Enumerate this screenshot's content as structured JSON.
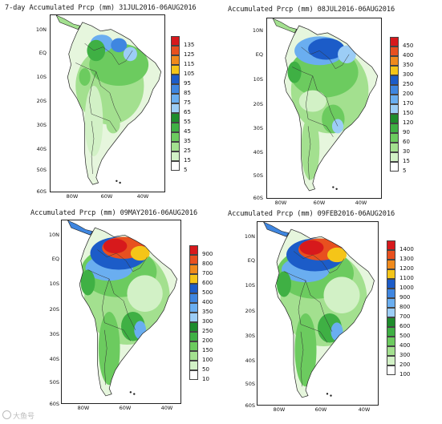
{
  "panels": [
    {
      "title": "7-day Accumulated Prcp (mm) 31JUL2016-06AUG2016",
      "lat_labels": [
        "10N",
        "EQ",
        "10S",
        "20S",
        "30S",
        "40S",
        "50S",
        "60S"
      ],
      "lon_labels": [
        "80W",
        "60W",
        "40W"
      ],
      "legend_levels": [
        "135",
        "125",
        "115",
        "105",
        "95",
        "85",
        "75",
        "65",
        "55",
        "45",
        "35",
        "25",
        "15",
        "5"
      ],
      "legend_colors": [
        "#d7191c",
        "#e8501f",
        "#f08a1c",
        "#f5c518",
        "#1c5cc8",
        "#3f86e0",
        "#6aaef0",
        "#9ccdf6",
        "#1e8c2c",
        "#3fb044",
        "#6ccb5f",
        "#a3e08f",
        "#d2f1c6",
        "#ffffff"
      ],
      "intensity": "low"
    },
    {
      "title": "Accumulated Prcp (mm) 08JUL2016-06AUG2016",
      "lat_labels": [
        "10N",
        "EQ",
        "10S",
        "20S",
        "30S",
        "40S",
        "50S",
        "60S"
      ],
      "lon_labels": [
        "80W",
        "60W",
        "40W"
      ],
      "legend_levels": [
        "450",
        "400",
        "350",
        "300",
        "250",
        "200",
        "170",
        "150",
        "120",
        "90",
        "60",
        "30",
        "15",
        "5"
      ],
      "legend_colors": [
        "#d7191c",
        "#e8501f",
        "#f08a1c",
        "#f5c518",
        "#1c5cc8",
        "#3f86e0",
        "#6aaef0",
        "#9ccdf6",
        "#1e8c2c",
        "#3fb044",
        "#6ccb5f",
        "#a3e08f",
        "#d2f1c6",
        "#ffffff"
      ],
      "intensity": "medium"
    },
    {
      "title": "Accumulated Prcp (mm) 09MAY2016-06AUG2016",
      "lat_labels": [
        "10N",
        "EQ",
        "10S",
        "20S",
        "30S",
        "40S",
        "50S",
        "60S"
      ],
      "lon_labels": [
        "80W",
        "60W",
        "40W"
      ],
      "legend_levels": [
        "900",
        "800",
        "700",
        "600",
        "500",
        "400",
        "350",
        "300",
        "250",
        "200",
        "150",
        "100",
        "50",
        "10"
      ],
      "legend_colors": [
        "#d7191c",
        "#e8501f",
        "#f08a1c",
        "#f5c518",
        "#1c5cc8",
        "#3f86e0",
        "#6aaef0",
        "#9ccdf6",
        "#1e8c2c",
        "#3fb044",
        "#6ccb5f",
        "#a3e08f",
        "#d2f1c6",
        "#ffffff"
      ],
      "intensity": "high"
    },
    {
      "title": "Accumulated Prcp (mm) 09FEB2016-06AUG2016",
      "lat_labels": [
        "10N",
        "EQ",
        "10S",
        "20S",
        "30S",
        "40S",
        "50S",
        "60S"
      ],
      "lon_labels": [
        "80W",
        "60W",
        "40W"
      ],
      "legend_levels": [
        "1400",
        "1300",
        "1200",
        "1100",
        "1000",
        "900",
        "800",
        "700",
        "600",
        "500",
        "400",
        "300",
        "200",
        "100"
      ],
      "legend_colors": [
        "#d7191c",
        "#e8501f",
        "#f08a1c",
        "#f5c518",
        "#1c5cc8",
        "#3f86e0",
        "#6aaef0",
        "#9ccdf6",
        "#1e8c2c",
        "#3fb044",
        "#6ccb5f",
        "#a3e08f",
        "#d2f1c6",
        "#ffffff"
      ],
      "intensity": "high"
    }
  ],
  "watermark": "大鱼号"
}
